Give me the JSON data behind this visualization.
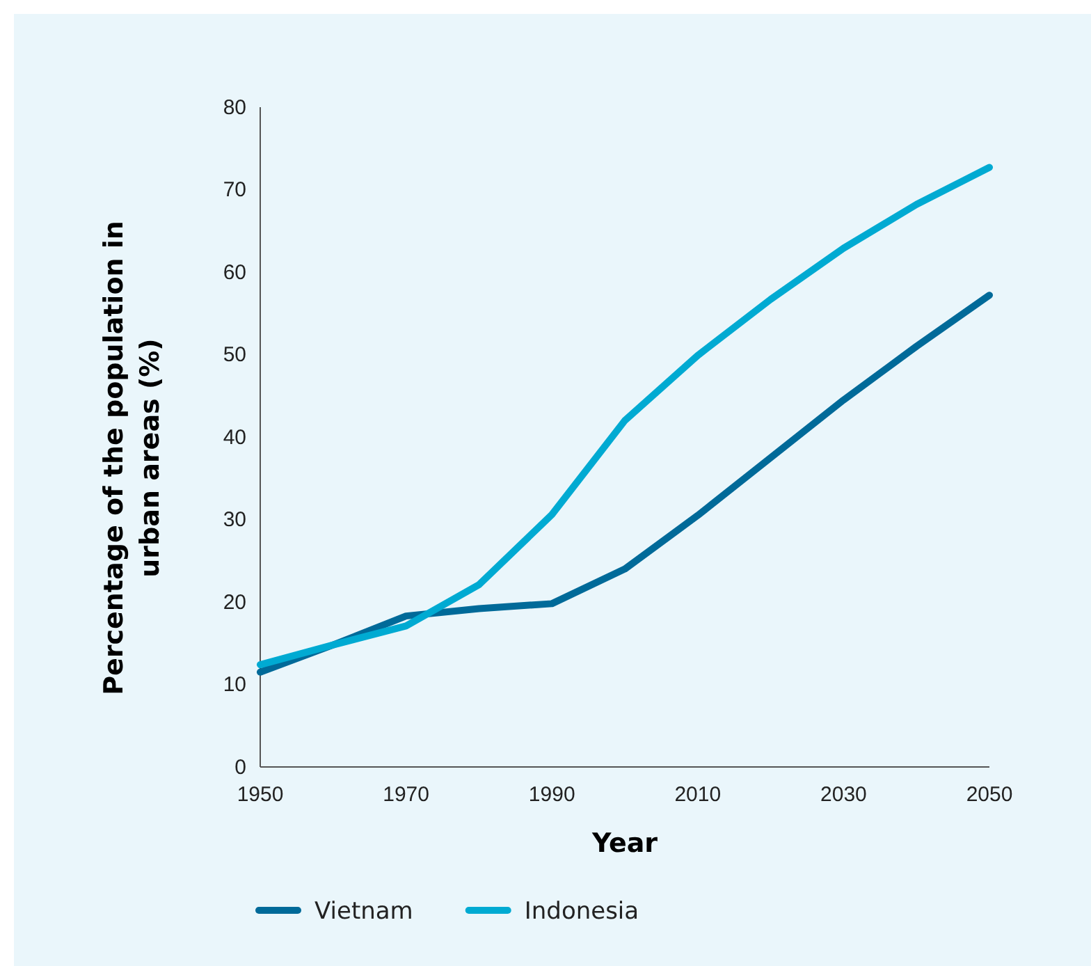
{
  "chart_data": {
    "type": "line",
    "xlabel": "Year",
    "ylabel": "Percentage of the population in urban areas (%)",
    "x": [
      1950,
      1960,
      1970,
      1980,
      1990,
      2000,
      2010,
      2020,
      2030,
      2040,
      2050
    ],
    "series": [
      {
        "name": "Vietnam",
        "color": "#006a99",
        "values": [
          11.5,
          14.8,
          18.3,
          19.2,
          19.8,
          24,
          30.5,
          37.5,
          44.5,
          51,
          57.2
        ]
      },
      {
        "name": "Indonesia",
        "color": "#00aad2",
        "values": [
          12.4,
          14.8,
          17.1,
          22.1,
          30.6,
          42,
          49.9,
          56.7,
          62.9,
          68.2,
          72.7
        ]
      }
    ],
    "xlim": [
      1950,
      2050
    ],
    "xticks": [
      1950,
      1970,
      1990,
      2010,
      2030,
      2050
    ],
    "ylim": [
      0,
      80
    ],
    "yticks": [
      0,
      10,
      20,
      30,
      40,
      50,
      60,
      70,
      80
    ],
    "legend": "bottom",
    "grid": false,
    "marker": "none",
    "line_style": "solid"
  }
}
